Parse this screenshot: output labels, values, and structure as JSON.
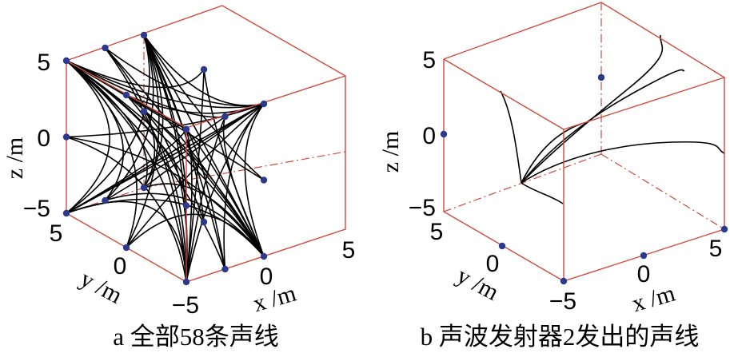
{
  "chart_data": [
    {
      "type": "3d-line",
      "caption": "a 全部58条声线",
      "xlabel": "x /m",
      "ylabel": "y /m",
      "zlabel": "z /m",
      "x_ticks": [
        "−5",
        "0",
        "5"
      ],
      "y_ticks": [
        "5",
        "0",
        "−5"
      ],
      "z_ticks": [
        "5",
        "0",
        "−5"
      ],
      "xlim": [
        -5,
        5
      ],
      "ylim": [
        -5,
        5
      ],
      "zlim": [
        -5,
        5
      ],
      "ray_count": 58,
      "emitters": [
        [
          5,
          5,
          5
        ],
        [
          -5,
          -5,
          5
        ],
        [
          5,
          -5,
          5
        ],
        [
          -5,
          5,
          5
        ],
        [
          5,
          5,
          -5
        ],
        [
          -5,
          -5,
          -5
        ],
        [
          5,
          -5,
          -5
        ],
        [
          -5,
          5,
          -5
        ],
        [
          0,
          5,
          5
        ],
        [
          5,
          0,
          5
        ],
        [
          0,
          -5,
          5
        ],
        [
          -5,
          0,
          5
        ],
        [
          0,
          5,
          -5
        ],
        [
          5,
          0,
          -5
        ],
        [
          0,
          -5,
          -5
        ],
        [
          -5,
          0,
          -5
        ],
        [
          5,
          5,
          0
        ],
        [
          -5,
          -5,
          0
        ],
        [
          5,
          -5,
          0
        ],
        [
          -5,
          5,
          0
        ]
      ]
    },
    {
      "type": "3d-line",
      "caption": "b 声波发射器2发出的声线",
      "xlabel": "x /m",
      "ylabel": "y /m",
      "zlabel": "z /m",
      "x_ticks": [
        "−5",
        "0",
        "5"
      ],
      "y_ticks": [
        "5",
        "0",
        "−5"
      ],
      "z_ticks": [
        "5",
        "0",
        "−5"
      ],
      "xlim": [
        -5,
        5
      ],
      "ylim": [
        -5,
        5
      ],
      "zlim": [
        -5,
        5
      ],
      "emitters": [
        [
          0,
          5,
          -5
        ],
        [
          -5,
          0,
          -5
        ],
        [
          0,
          0,
          5
        ],
        [
          -5,
          5,
          0
        ],
        [
          5,
          -5,
          -5
        ]
      ]
    }
  ]
}
